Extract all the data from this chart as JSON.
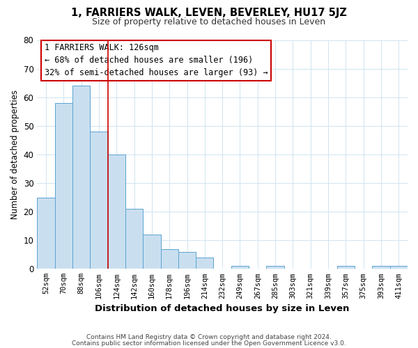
{
  "title": "1, FARRIERS WALK, LEVEN, BEVERLEY, HU17 5JZ",
  "subtitle": "Size of property relative to detached houses in Leven",
  "xlabel": "Distribution of detached houses by size in Leven",
  "ylabel": "Number of detached properties",
  "bin_labels": [
    "52sqm",
    "70sqm",
    "88sqm",
    "106sqm",
    "124sqm",
    "142sqm",
    "160sqm",
    "178sqm",
    "196sqm",
    "214sqm",
    "232sqm",
    "249sqm",
    "267sqm",
    "285sqm",
    "303sqm",
    "321sqm",
    "339sqm",
    "357sqm",
    "375sqm",
    "393sqm",
    "411sqm"
  ],
  "bar_heights": [
    25,
    58,
    64,
    48,
    40,
    21,
    12,
    7,
    6,
    4,
    0,
    1,
    0,
    1,
    0,
    0,
    0,
    1,
    0,
    1,
    1
  ],
  "bar_color": "#c9dff0",
  "bar_edge_color": "#5ba3d0",
  "vline_index": 4,
  "vline_color": "#cc0000",
  "annotation_text": "1 FARRIERS WALK: 126sqm\n← 68% of detached houses are smaller (196)\n32% of semi-detached houses are larger (93) →",
  "annotation_box_color": "#ffffff",
  "annotation_box_edge_color": "#cc0000",
  "ylim": [
    0,
    80
  ],
  "yticks": [
    0,
    10,
    20,
    30,
    40,
    50,
    60,
    70,
    80
  ],
  "footer_line1": "Contains HM Land Registry data © Crown copyright and database right 2024.",
  "footer_line2": "Contains public sector information licensed under the Open Government Licence v3.0.",
  "bg_color": "#ffffff",
  "grid_color": "#d0e4f0"
}
